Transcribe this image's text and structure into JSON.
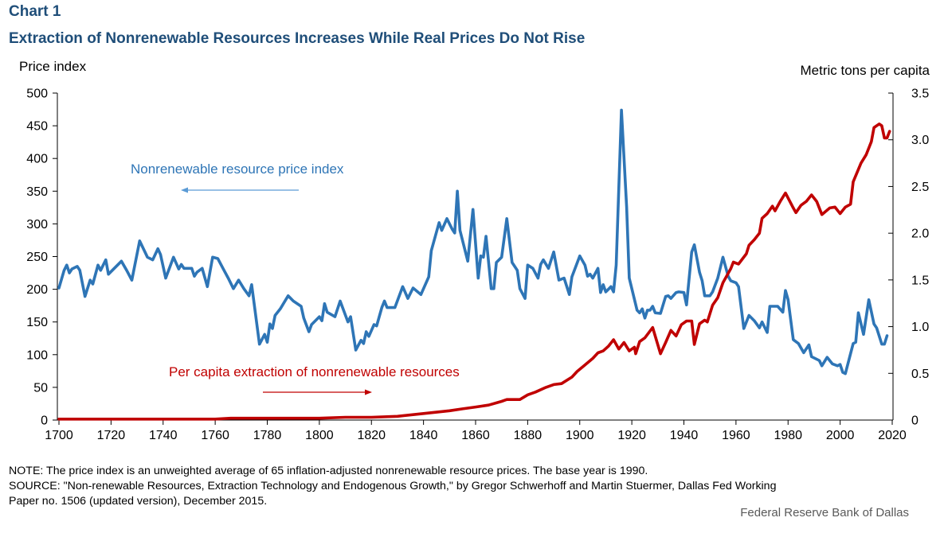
{
  "header": {
    "chart_number": "Chart 1",
    "title": "Extraction of Nonrenewable Resources Increases While Real Prices Do Not Rise"
  },
  "footer": {
    "note": "NOTE:  The price index is an unweighted  average  of 65 inflation-adjusted  nonrenewable  resource prices. The  base year is 1990.",
    "source_line1": "SOURCE:  \"Non-renewable  Resources, Extraction Technology and Endogenous  Growth,\"  by Gregor Schwerhoff and Martin Stuermer, Dallas Fed Working",
    "source_line2": "Paper no. 1506 (updated version), December 2015.",
    "credit": "Federal Reserve Bank of Dallas"
  },
  "colors": {
    "title": "#1f4e79",
    "price_series": "#2e75b6",
    "extraction_series": "#c00000",
    "axis": "#000000"
  },
  "chart_data": {
    "type": "line",
    "title": "Extraction of Nonrenewable Resources Increases While Real Prices Do Not Rise",
    "xlabel": "",
    "ylabel": "Price index",
    "ylabel_right": "Metric tons per capita",
    "xlim": [
      1700,
      2020
    ],
    "ylim": [
      0,
      500
    ],
    "ylim_right": [
      0,
      3.5
    ],
    "x_ticks": [
      "1700",
      "1720",
      "1740",
      "1760",
      "1780",
      "1800",
      "1820",
      "1840",
      "1860",
      "1880",
      "1900",
      "1920",
      "1940",
      "1960",
      "1980",
      "2000",
      "2020"
    ],
    "y_ticks": [
      "0",
      "50",
      "100",
      "150",
      "200",
      "250",
      "300",
      "350",
      "400",
      "450",
      "500"
    ],
    "y_ticks_right": [
      "0",
      "0.5",
      "1.0",
      "1.5",
      "2.0",
      "2.5",
      "3.0",
      "3.5"
    ],
    "grid": false,
    "legend": "inline annotations",
    "annotations": [
      {
        "text": "Nonrenewable  resource price index",
        "series": "price",
        "arrow": "left"
      },
      {
        "text": "Per capita extraction of nonrenewable  resources",
        "series": "extraction",
        "arrow": "right"
      }
    ],
    "series": [
      {
        "name": "Nonrenewable resource price index",
        "axis": "left",
        "points": [
          [
            1700,
            202
          ],
          [
            1702,
            229
          ],
          [
            1703,
            237
          ],
          [
            1704,
            225
          ],
          [
            1705,
            231
          ],
          [
            1707,
            235
          ],
          [
            1708,
            229
          ],
          [
            1710,
            189
          ],
          [
            1712,
            214
          ],
          [
            1713,
            208
          ],
          [
            1715,
            237
          ],
          [
            1716,
            229
          ],
          [
            1718,
            245
          ],
          [
            1719,
            223
          ],
          [
            1724,
            243
          ],
          [
            1726,
            229
          ],
          [
            1728,
            214
          ],
          [
            1731,
            274
          ],
          [
            1734,
            249
          ],
          [
            1736,
            245
          ],
          [
            1738,
            262
          ],
          [
            1739,
            253
          ],
          [
            1741,
            217
          ],
          [
            1744,
            249
          ],
          [
            1746,
            231
          ],
          [
            1747,
            238
          ],
          [
            1748,
            232
          ],
          [
            1751,
            232
          ],
          [
            1752,
            220
          ],
          [
            1753,
            226
          ],
          [
            1755,
            232
          ],
          [
            1757,
            204
          ],
          [
            1759,
            249
          ],
          [
            1761,
            247
          ],
          [
            1763,
            232
          ],
          [
            1765,
            217
          ],
          [
            1767,
            201
          ],
          [
            1769,
            214
          ],
          [
            1771,
            201
          ],
          [
            1773,
            190
          ],
          [
            1774,
            207
          ],
          [
            1777,
            116
          ],
          [
            1779,
            131
          ],
          [
            1780,
            119
          ],
          [
            1781,
            147
          ],
          [
            1782,
            140
          ],
          [
            1783,
            160
          ],
          [
            1785,
            170
          ],
          [
            1788,
            190
          ],
          [
            1790,
            182
          ],
          [
            1793,
            174
          ],
          [
            1794,
            156
          ],
          [
            1796,
            135
          ],
          [
            1797,
            146
          ],
          [
            1800,
            158
          ],
          [
            1801,
            152
          ],
          [
            1802,
            178
          ],
          [
            1803,
            165
          ],
          [
            1806,
            158
          ],
          [
            1808,
            182
          ],
          [
            1811,
            150
          ],
          [
            1812,
            158
          ],
          [
            1814,
            107
          ],
          [
            1816,
            122
          ],
          [
            1817,
            117
          ],
          [
            1818,
            135
          ],
          [
            1819,
            128
          ],
          [
            1821,
            146
          ],
          [
            1822,
            144
          ],
          [
            1824,
            172
          ],
          [
            1825,
            182
          ],
          [
            1826,
            172
          ],
          [
            1829,
            172
          ],
          [
            1832,
            204
          ],
          [
            1834,
            186
          ],
          [
            1836,
            202
          ],
          [
            1839,
            192
          ],
          [
            1842,
            219
          ],
          [
            1843,
            259
          ],
          [
            1846,
            302
          ],
          [
            1847,
            290
          ],
          [
            1849,
            308
          ],
          [
            1851,
            292
          ],
          [
            1852,
            286
          ],
          [
            1853,
            350
          ],
          [
            1854,
            290
          ],
          [
            1857,
            243
          ],
          [
            1859,
            322
          ],
          [
            1861,
            217
          ],
          [
            1862,
            251
          ],
          [
            1863,
            249
          ],
          [
            1864,
            281
          ],
          [
            1866,
            201
          ],
          [
            1867,
            201
          ],
          [
            1868,
            241
          ],
          [
            1870,
            249
          ],
          [
            1872,
            308
          ],
          [
            1874,
            241
          ],
          [
            1876,
            229
          ],
          [
            1877,
            201
          ],
          [
            1879,
            186
          ],
          [
            1880,
            237
          ],
          [
            1882,
            232
          ],
          [
            1884,
            217
          ],
          [
            1885,
            238
          ],
          [
            1886,
            245
          ],
          [
            1888,
            232
          ],
          [
            1890,
            257
          ],
          [
            1892,
            214
          ],
          [
            1894,
            217
          ],
          [
            1896,
            192
          ],
          [
            1897,
            219
          ],
          [
            1900,
            251
          ],
          [
            1902,
            237
          ],
          [
            1903,
            220
          ],
          [
            1904,
            223
          ],
          [
            1905,
            217
          ],
          [
            1907,
            232
          ],
          [
            1908,
            195
          ],
          [
            1909,
            207
          ],
          [
            1910,
            196
          ],
          [
            1912,
            204
          ],
          [
            1913,
            196
          ],
          [
            1914,
            237
          ],
          [
            1916,
            474
          ],
          [
            1918,
            326
          ],
          [
            1919,
            217
          ],
          [
            1922,
            168
          ],
          [
            1923,
            164
          ],
          [
            1924,
            170
          ],
          [
            1925,
            156
          ],
          [
            1926,
            168
          ],
          [
            1927,
            168
          ],
          [
            1928,
            174
          ],
          [
            1929,
            164
          ],
          [
            1931,
            163
          ],
          [
            1933,
            189
          ],
          [
            1934,
            190
          ],
          [
            1935,
            186
          ],
          [
            1937,
            195
          ],
          [
            1938,
            196
          ],
          [
            1940,
            195
          ],
          [
            1941,
            176
          ],
          [
            1943,
            257
          ],
          [
            1944,
            268
          ],
          [
            1946,
            226
          ],
          [
            1947,
            213
          ],
          [
            1948,
            190
          ],
          [
            1950,
            190
          ],
          [
            1951,
            196
          ],
          [
            1953,
            217
          ],
          [
            1955,
            249
          ],
          [
            1957,
            220
          ],
          [
            1958,
            213
          ],
          [
            1960,
            210
          ],
          [
            1961,
            204
          ],
          [
            1963,
            140
          ],
          [
            1965,
            160
          ],
          [
            1967,
            152
          ],
          [
            1969,
            141
          ],
          [
            1970,
            150
          ],
          [
            1972,
            134
          ],
          [
            1973,
            174
          ],
          [
            1975,
            174
          ],
          [
            1976,
            174
          ],
          [
            1978,
            165
          ],
          [
            1979,
            198
          ],
          [
            1980,
            184
          ],
          [
            1982,
            123
          ],
          [
            1984,
            117
          ],
          [
            1986,
            103
          ],
          [
            1988,
            115
          ],
          [
            1989,
            97
          ],
          [
            1992,
            91
          ],
          [
            1993,
            83
          ],
          [
            1995,
            96
          ],
          [
            1997,
            86
          ],
          [
            1999,
            83
          ],
          [
            2000,
            85
          ],
          [
            2001,
            73
          ],
          [
            2002,
            71
          ],
          [
            2005,
            117
          ],
          [
            2006,
            119
          ],
          [
            2007,
            164
          ],
          [
            2009,
            131
          ],
          [
            2011,
            184
          ],
          [
            2013,
            147
          ],
          [
            2014,
            141
          ],
          [
            2016,
            116
          ],
          [
            2017,
            116
          ],
          [
            2018,
            129
          ]
        ]
      },
      {
        "name": "Per capita extraction of nonrenewable resources",
        "axis": "right",
        "unit": "metric tons per capita",
        "points": [
          [
            1700,
            0.01
          ],
          [
            1720,
            0.01
          ],
          [
            1740,
            0.01
          ],
          [
            1760,
            0.01
          ],
          [
            1766,
            0.02
          ],
          [
            1780,
            0.02
          ],
          [
            1800,
            0.02
          ],
          [
            1810,
            0.03
          ],
          [
            1820,
            0.03
          ],
          [
            1830,
            0.04
          ],
          [
            1840,
            0.07
          ],
          [
            1850,
            0.1
          ],
          [
            1855,
            0.12
          ],
          [
            1860,
            0.14
          ],
          [
            1865,
            0.16
          ],
          [
            1870,
            0.2
          ],
          [
            1872,
            0.22
          ],
          [
            1877,
            0.22
          ],
          [
            1880,
            0.27
          ],
          [
            1883,
            0.3
          ],
          [
            1887,
            0.35
          ],
          [
            1890,
            0.38
          ],
          [
            1893,
            0.39
          ],
          [
            1897,
            0.46
          ],
          [
            1899,
            0.52
          ],
          [
            1902,
            0.59
          ],
          [
            1905,
            0.66
          ],
          [
            1907,
            0.72
          ],
          [
            1909,
            0.74
          ],
          [
            1911,
            0.79
          ],
          [
            1913,
            0.86
          ],
          [
            1915,
            0.76
          ],
          [
            1917,
            0.83
          ],
          [
            1919,
            0.74
          ],
          [
            1921,
            0.78
          ],
          [
            1921.5,
            0.71
          ],
          [
            1923,
            0.84
          ],
          [
            1925,
            0.88
          ],
          [
            1928,
            0.99
          ],
          [
            1931,
            0.71
          ],
          [
            1933,
            0.83
          ],
          [
            1935,
            0.96
          ],
          [
            1937,
            0.9
          ],
          [
            1939,
            1.02
          ],
          [
            1941,
            1.06
          ],
          [
            1943,
            1.06
          ],
          [
            1944,
            0.81
          ],
          [
            1946,
            1.03
          ],
          [
            1948,
            1.07
          ],
          [
            1949,
            1.05
          ],
          [
            1951,
            1.23
          ],
          [
            1953,
            1.31
          ],
          [
            1955,
            1.47
          ],
          [
            1958,
            1.62
          ],
          [
            1959,
            1.69
          ],
          [
            1961,
            1.67
          ],
          [
            1964,
            1.78
          ],
          [
            1965,
            1.87
          ],
          [
            1967,
            1.93
          ],
          [
            1969,
            2.0
          ],
          [
            1970,
            2.16
          ],
          [
            1972,
            2.21
          ],
          [
            1974,
            2.29
          ],
          [
            1975,
            2.24
          ],
          [
            1977,
            2.34
          ],
          [
            1979,
            2.43
          ],
          [
            1982,
            2.27
          ],
          [
            1983,
            2.22
          ],
          [
            1985,
            2.3
          ],
          [
            1987,
            2.34
          ],
          [
            1989,
            2.41
          ],
          [
            1991,
            2.34
          ],
          [
            1993,
            2.2
          ],
          [
            1996,
            2.27
          ],
          [
            1998,
            2.28
          ],
          [
            2000,
            2.21
          ],
          [
            2002,
            2.28
          ],
          [
            2004,
            2.31
          ],
          [
            2005,
            2.55
          ],
          [
            2008,
            2.75
          ],
          [
            2010,
            2.84
          ],
          [
            2012,
            2.98
          ],
          [
            2013,
            3.13
          ],
          [
            2015,
            3.17
          ],
          [
            2016,
            3.15
          ],
          [
            2017,
            3.02
          ],
          [
            2018,
            3.02
          ],
          [
            2019,
            3.09
          ]
        ]
      }
    ]
  }
}
